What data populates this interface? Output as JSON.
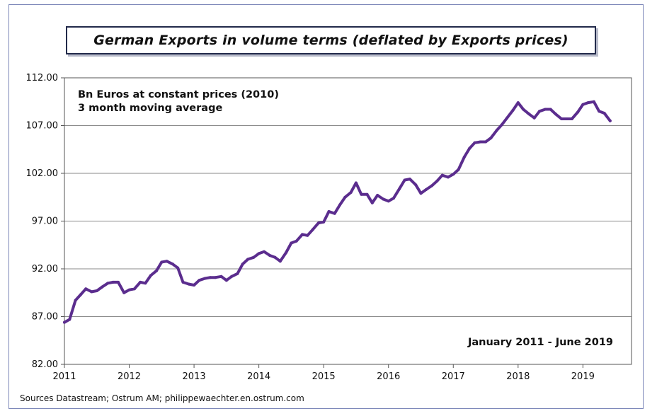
{
  "chart_data": {
    "type": "line",
    "title": "German Exports in volume terms (deflated by Exports prices)",
    "annotations": [
      "Bn Euros at constant prices (2010)",
      "3 month moving average",
      "January 2011 - June 2019"
    ],
    "source": "Sources Datastream;  Ostrum AM; philippewaechter.en.ostrum.com",
    "ylim": [
      82,
      112
    ],
    "yticks": [
      "82.00",
      "87.00",
      "92.00",
      "97.00",
      "102.00",
      "107.00",
      "112.00"
    ],
    "xticks": [
      "2011",
      "2012",
      "2013",
      "2014",
      "2015",
      "2016",
      "2017",
      "2018",
      "2019"
    ],
    "xlim": [
      2011.0,
      2019.75
    ],
    "grid": true,
    "line_color": "#5b2d8e",
    "series": [
      {
        "name": "",
        "x": [
          2011.0,
          2011.08,
          2011.17,
          2011.25,
          2011.33,
          2011.42,
          2011.5,
          2011.58,
          2011.67,
          2011.75,
          2011.83,
          2011.92,
          2012.0,
          2012.08,
          2012.17,
          2012.25,
          2012.33,
          2012.42,
          2012.5,
          2012.58,
          2012.67,
          2012.75,
          2012.83,
          2012.92,
          2013.0,
          2013.08,
          2013.17,
          2013.25,
          2013.33,
          2013.42,
          2013.5,
          2013.58,
          2013.67,
          2013.75,
          2013.83,
          2013.92,
          2014.0,
          2014.08,
          2014.17,
          2014.25,
          2014.33,
          2014.42,
          2014.5,
          2014.58,
          2014.67,
          2014.75,
          2014.83,
          2014.92,
          2015.0,
          2015.08,
          2015.17,
          2015.25,
          2015.33,
          2015.42,
          2015.5,
          2015.58,
          2015.67,
          2015.75,
          2015.83,
          2015.92,
          2016.0,
          2016.08,
          2016.17,
          2016.25,
          2016.33,
          2016.42,
          2016.5,
          2016.58,
          2016.67,
          2016.75,
          2016.83,
          2016.92,
          2017.0,
          2017.08,
          2017.17,
          2017.25,
          2017.33,
          2017.42,
          2017.5,
          2017.58,
          2017.67,
          2017.75,
          2017.83,
          2017.92,
          2018.0,
          2018.08,
          2018.17,
          2018.25,
          2018.33,
          2018.42,
          2018.5,
          2018.58,
          2018.67,
          2018.75,
          2018.83,
          2018.92,
          2019.0,
          2019.08,
          2019.17,
          2019.25,
          2019.33,
          2019.42
        ],
        "values": [
          86.4,
          86.7,
          88.7,
          89.3,
          89.9,
          89.6,
          89.7,
          90.1,
          90.5,
          90.6,
          90.6,
          89.5,
          89.8,
          89.9,
          90.6,
          90.5,
          91.3,
          91.8,
          92.7,
          92.8,
          92.5,
          92.1,
          90.6,
          90.4,
          90.3,
          90.8,
          91.0,
          91.1,
          91.1,
          91.2,
          90.8,
          91.2,
          91.5,
          92.5,
          93.0,
          93.2,
          93.6,
          93.8,
          93.4,
          93.2,
          92.8,
          93.7,
          94.7,
          94.9,
          95.6,
          95.5,
          96.1,
          96.8,
          96.9,
          98.0,
          97.8,
          98.7,
          99.5,
          100.0,
          101.0,
          99.8,
          99.8,
          98.9,
          99.7,
          99.3,
          99.1,
          99.4,
          100.4,
          101.3,
          101.4,
          100.8,
          99.9,
          100.3,
          100.7,
          101.2,
          101.8,
          101.6,
          101.9,
          102.4,
          103.7,
          104.6,
          105.2,
          105.3,
          105.3,
          105.7,
          106.5,
          107.1,
          107.8,
          108.6,
          109.4,
          108.7,
          108.2,
          107.8,
          108.5,
          108.7,
          108.7,
          108.2,
          107.7,
          107.7,
          107.7,
          108.4,
          109.2,
          109.4,
          109.5,
          108.5,
          108.3,
          107.5
        ]
      }
    ]
  }
}
